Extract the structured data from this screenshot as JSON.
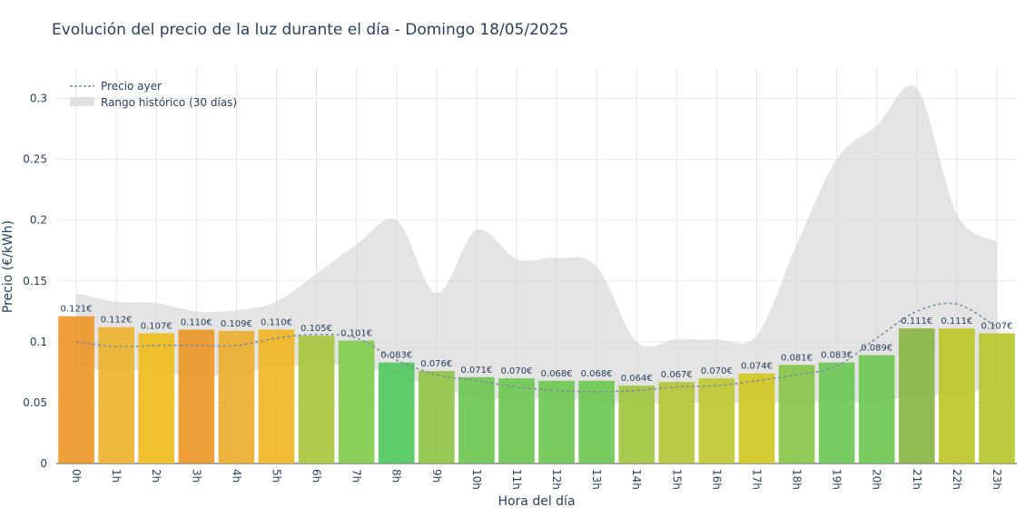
{
  "chart_data": {
    "type": "bar",
    "title": "Evolución del precio de la luz durante el día - Domingo 18/05/2025",
    "xlabel": "Hora del día",
    "ylabel": "Precio (€/kWh)",
    "ylim": [
      0,
      0.325
    ],
    "yticks": [
      0,
      0.05,
      0.1,
      0.15,
      0.2,
      0.25,
      0.3
    ],
    "ytick_labels": [
      "0",
      "0.05",
      "0.1",
      "0.15",
      "0.2",
      "0.25",
      "0.3"
    ],
    "categories": [
      "0h",
      "1h",
      "2h",
      "3h",
      "4h",
      "5h",
      "6h",
      "7h",
      "8h",
      "9h",
      "10h",
      "11h",
      "12h",
      "13h",
      "14h",
      "15h",
      "16h",
      "17h",
      "18h",
      "19h",
      "20h",
      "21h",
      "22h",
      "23h"
    ],
    "values": [
      0.121,
      0.112,
      0.107,
      0.11,
      0.109,
      0.11,
      0.105,
      0.101,
      0.083,
      0.076,
      0.071,
      0.07,
      0.068,
      0.068,
      0.064,
      0.067,
      0.07,
      0.074,
      0.081,
      0.083,
      0.089,
      0.111,
      0.111,
      0.107
    ],
    "bar_labels": [
      "0.121€",
      "0.112€",
      "0.107€",
      "0.110€",
      "0.109€",
      "0.110€",
      "0.105€",
      "0.101€",
      "0.083€",
      "0.076€",
      "0.071€",
      "0.070€",
      "0.068€",
      "0.068€",
      "0.064€",
      "0.067€",
      "0.070€",
      "0.074€",
      "0.081€",
      "0.083€",
      "0.089€",
      "0.111€",
      "0.111€",
      "0.107€"
    ],
    "bar_colors": [
      "#ec9524",
      "#ebb22a",
      "#efbb1a",
      "#ec9524",
      "#ebad2a",
      "#efb41f",
      "#a8c33a",
      "#7fcb4a",
      "#4fc85c",
      "#8ec442",
      "#6dc64f",
      "#6dc64f",
      "#6dc64f",
      "#6dc64f",
      "#9dc43c",
      "#b4c534",
      "#bec72d",
      "#d0c51f",
      "#86c446",
      "#6ac752",
      "#6dc64f",
      "#86b53e",
      "#bdc526",
      "#b6c62a"
    ],
    "series": [
      {
        "name": "Precio ayer",
        "style": "dotted-line",
        "color": "#7f8c9d",
        "values": [
          0.1,
          0.096,
          0.097,
          0.097,
          0.097,
          0.103,
          0.106,
          0.103,
          0.085,
          0.073,
          0.068,
          0.063,
          0.06,
          0.059,
          0.06,
          0.063,
          0.064,
          0.068,
          0.073,
          0.08,
          0.103,
          0.125,
          0.131,
          0.112
        ]
      },
      {
        "name": "Rango histórico (30 días)",
        "style": "band",
        "color": "#d6d6d6",
        "upper": [
          0.14,
          0.133,
          0.132,
          0.125,
          0.126,
          0.133,
          0.156,
          0.18,
          0.2,
          0.14,
          0.192,
          0.168,
          0.169,
          0.162,
          0.1,
          0.102,
          0.102,
          0.105,
          0.18,
          0.25,
          0.278,
          0.308,
          0.205,
          0.182
        ],
        "lower": [
          0.078,
          0.077,
          0.076,
          0.071,
          0.074,
          0.079,
          0.081,
          0.08,
          0.072,
          0.063,
          0.054,
          0.053,
          0.053,
          0.052,
          0.049,
          0.05,
          0.05,
          0.051,
          0.05,
          0.052,
          0.05,
          0.057,
          0.056,
          0.065
        ]
      }
    ],
    "legend": {
      "position": "top-left"
    },
    "grid": true
  }
}
